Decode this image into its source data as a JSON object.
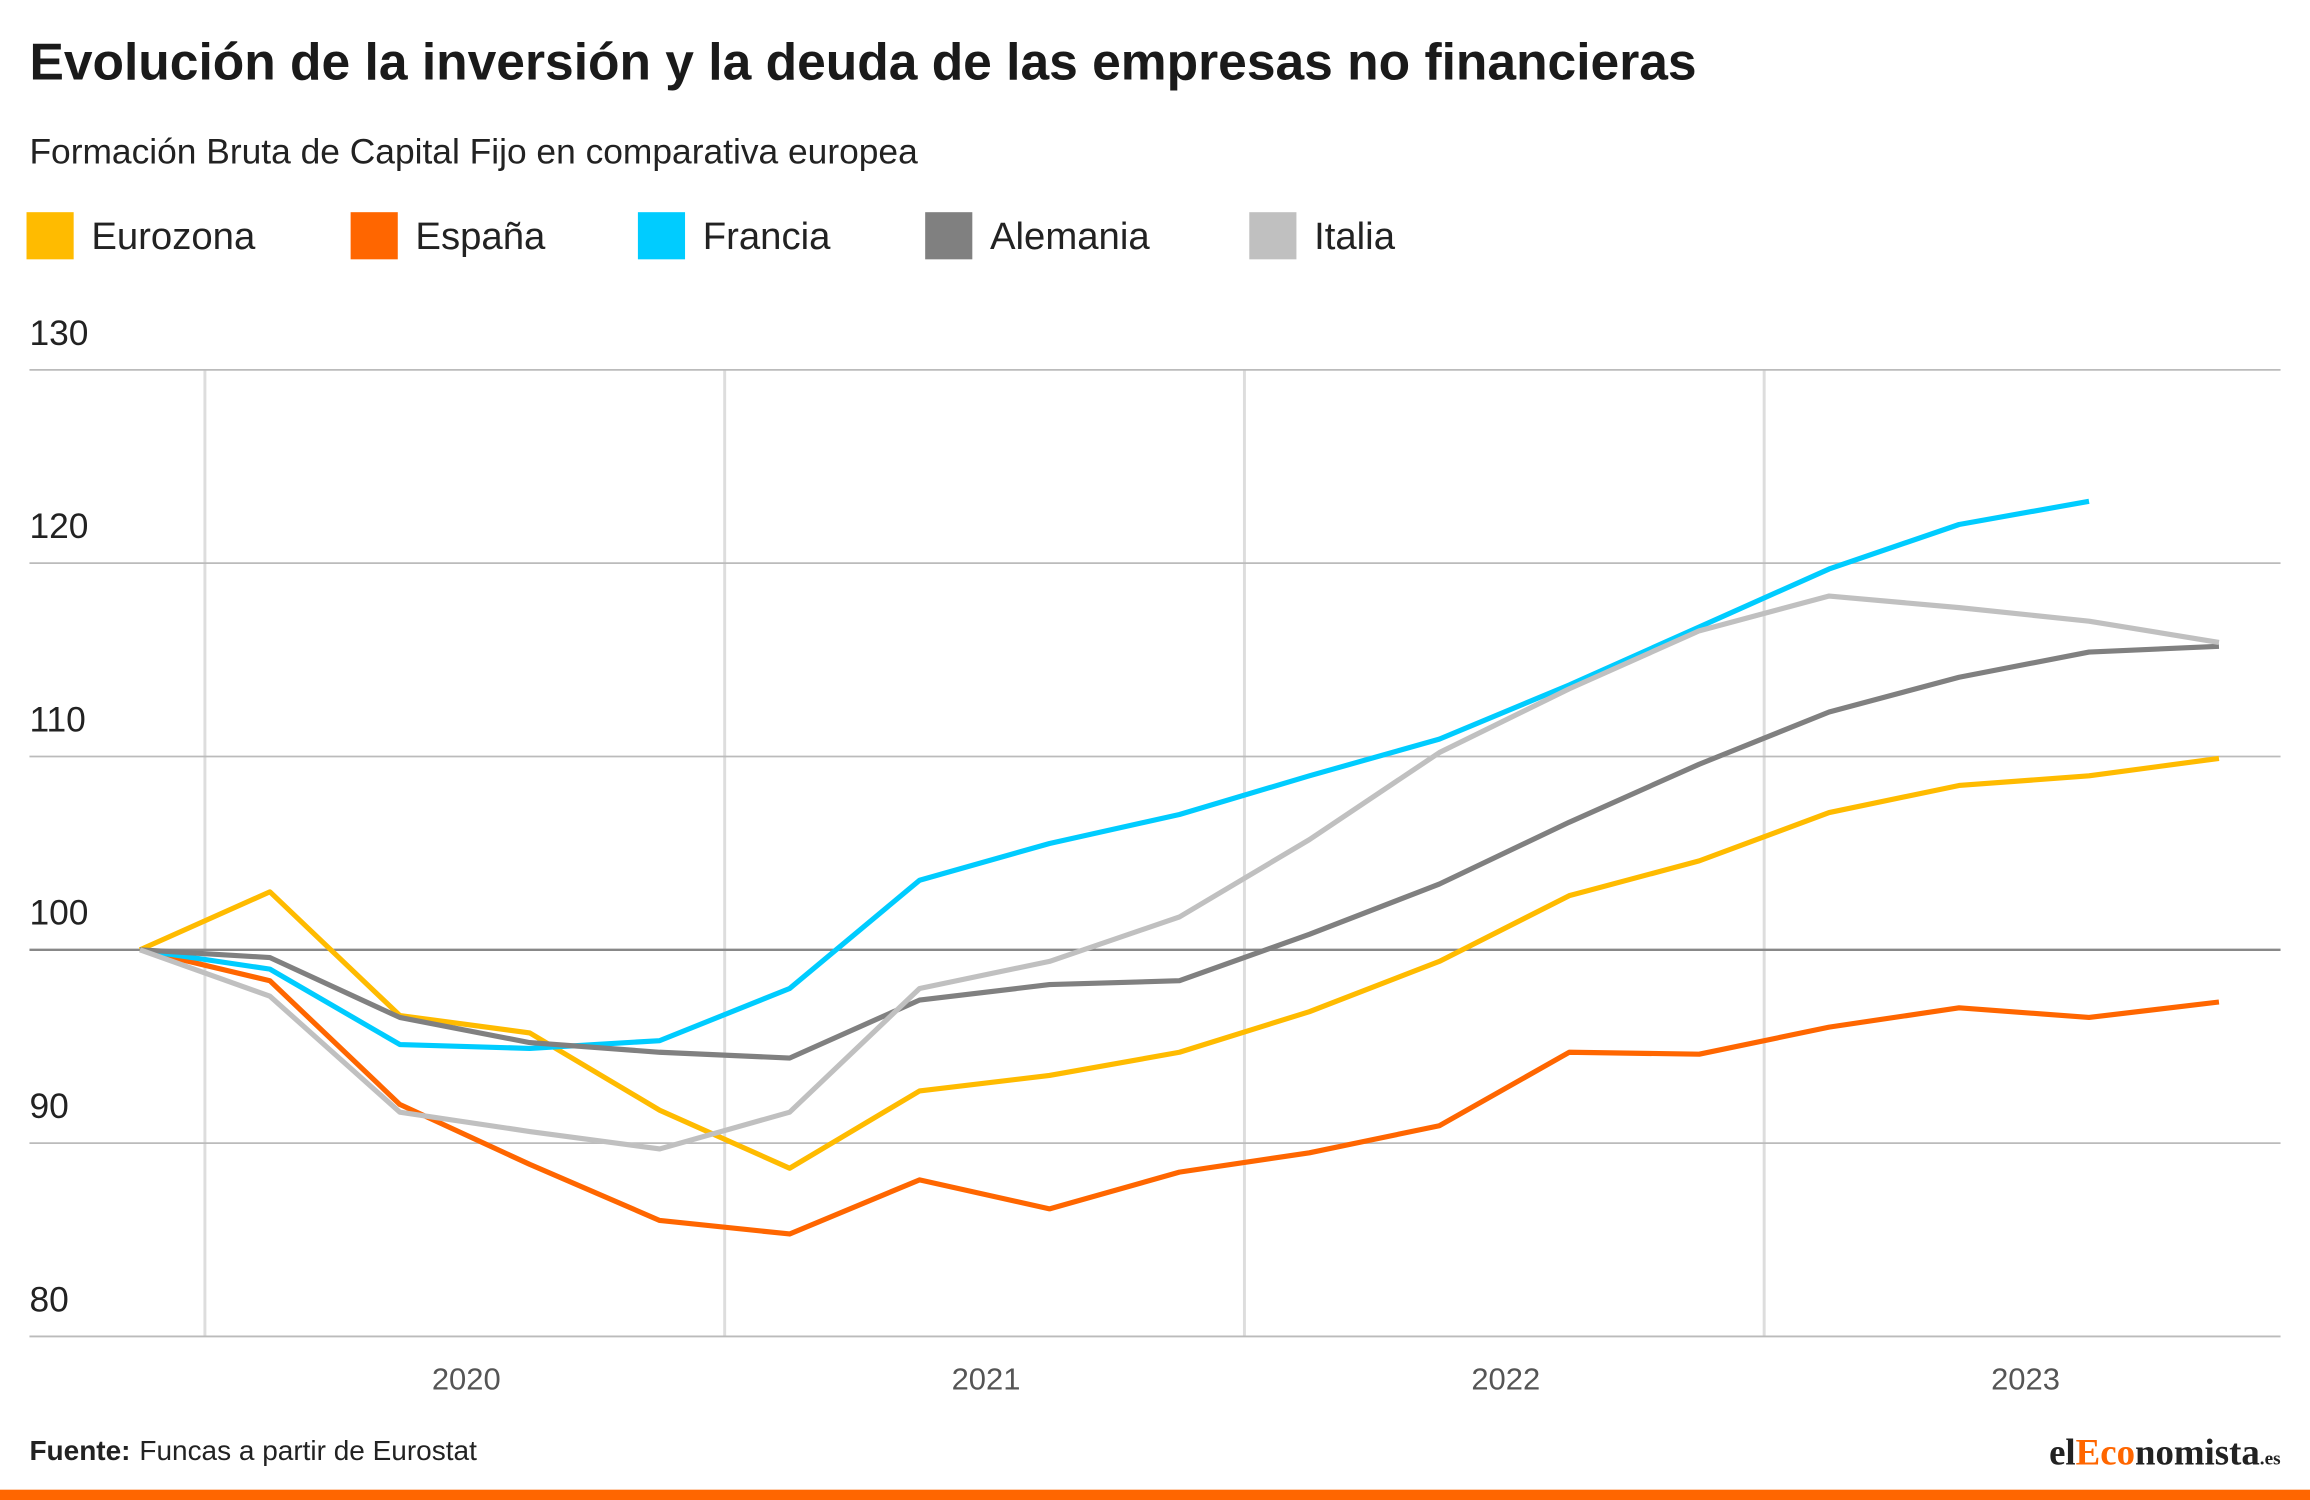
{
  "chart_data": {
    "type": "line",
    "title": "Evolución de la inversión y la deuda de las empresas no financieras",
    "subtitle": "Formación Bruta de Capital Fijo en comparativa europea",
    "categories": [
      null,
      null,
      null,
      null,
      null,
      null,
      null,
      null,
      null,
      null,
      null,
      null,
      null,
      null,
      null,
      null,
      null
    ],
    "year_labels": [
      "2020",
      "2021",
      "2022",
      "2023"
    ],
    "series": [
      {
        "name": "Eurozona",
        "color": "#ffbb00",
        "values": [
          100,
          103.0,
          96.6,
          95.7,
          91.7,
          88.7,
          92.7,
          93.5,
          94.7,
          96.8,
          99.4,
          102.8,
          104.6,
          107.1,
          108.5,
          109.0,
          109.9
        ]
      },
      {
        "name": "España",
        "color": "#ff6600",
        "values": [
          100,
          98.4,
          92.0,
          88.9,
          86.0,
          85.3,
          88.1,
          86.6,
          88.5,
          89.5,
          90.9,
          94.7,
          94.6,
          96.0,
          97.0,
          96.5,
          97.3
        ]
      },
      {
        "name": "Francia",
        "color": "#00ccff",
        "values": [
          100,
          99.0,
          95.1,
          94.9,
          95.3,
          98.0,
          103.6,
          105.5,
          107.0,
          109.0,
          110.9,
          113.7,
          116.7,
          119.7,
          122.0,
          123.2,
          null
        ]
      },
      {
        "name": "Alemania",
        "color": "#808080",
        "values": [
          100,
          99.6,
          96.5,
          95.2,
          94.7,
          94.4,
          97.4,
          98.2,
          98.4,
          100.8,
          103.4,
          106.6,
          109.6,
          112.3,
          114.1,
          115.4,
          115.7
        ]
      },
      {
        "name": "Italia",
        "color": "#c0c0c0",
        "values": [
          100,
          97.6,
          91.6,
          90.6,
          89.7,
          91.6,
          98.0,
          99.4,
          101.7,
          105.7,
          110.2,
          113.5,
          116.5,
          118.3,
          117.7,
          117.0,
          115.9
        ]
      }
    ],
    "ylim": [
      80,
      130
    ],
    "yticks": [
      80,
      90,
      100,
      110,
      120,
      130
    ],
    "grid": true,
    "source_label": "Fuente:",
    "source": "Funcas a partir de Eurostat",
    "logo": [
      "el",
      "Eco",
      "nomista",
      ".es"
    ]
  }
}
